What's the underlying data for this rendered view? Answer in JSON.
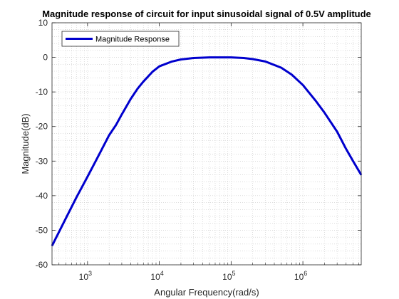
{
  "chart_data": {
    "type": "line",
    "title": "Magnitude response of circuit for input sinusoidal signal of 0.5V amplitude",
    "xlabel": "Angular Frequency(rad/s)",
    "ylabel": "Magnitude(dB)",
    "xscale": "log",
    "xlim": [
      320,
      6500000
    ],
    "ylim": [
      -60,
      10
    ],
    "x_ticks": [
      {
        "value": 1000,
        "base": "10",
        "exp": "3"
      },
      {
        "value": 10000,
        "base": "10",
        "exp": "4"
      },
      {
        "value": 100000,
        "base": "10",
        "exp": "5"
      },
      {
        "value": 1000000,
        "base": "10",
        "exp": "6"
      }
    ],
    "y_ticks": [
      10,
      0,
      -10,
      -20,
      -30,
      -40,
      -50,
      -60
    ],
    "y_tick_labels": [
      "10",
      "0",
      "-10",
      "-20",
      "-30",
      "-40",
      "-50",
      "-60"
    ],
    "grid": "minor-dotted",
    "legend_position": "top-left",
    "line_color": "#0000cd",
    "series": [
      {
        "name": "Magnitude Response",
        "x": [
          320,
          500,
          700,
          1000,
          1500,
          2000,
          2500,
          3000,
          4000,
          5000,
          6000,
          8000,
          10000,
          15000,
          20000,
          30000,
          50000,
          70000,
          100000,
          150000,
          200000,
          300000,
          500000,
          700000,
          1000000,
          1500000,
          2000000,
          3000000,
          4000000,
          5000000,
          6500000
        ],
        "y": [
          -54.5,
          -46.5,
          -40.5,
          -34.5,
          -27.5,
          -22.5,
          -19.5,
          -16.5,
          -12.0,
          -9.0,
          -7.0,
          -4.2,
          -2.6,
          -1.2,
          -0.6,
          -0.2,
          0.0,
          0.0,
          0.0,
          -0.2,
          -0.5,
          -1.2,
          -3.0,
          -5.0,
          -8.0,
          -12.5,
          -16.0,
          -21.5,
          -26.5,
          -30.0,
          -34.0
        ]
      }
    ]
  }
}
